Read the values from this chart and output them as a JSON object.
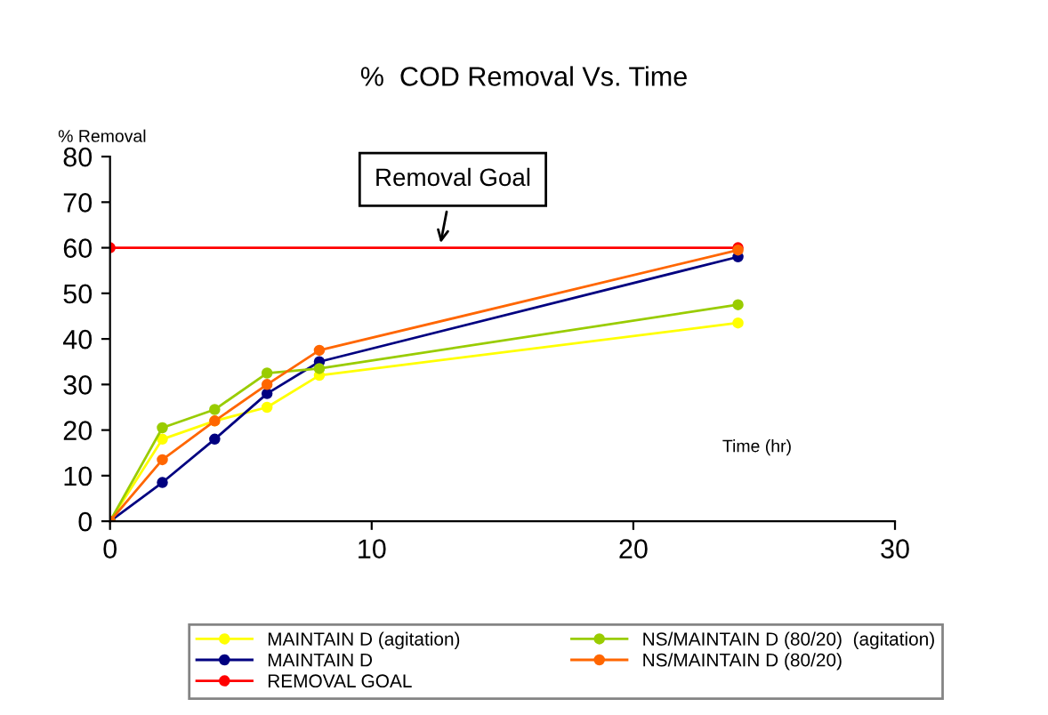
{
  "chart_data": {
    "type": "line",
    "title": "%  COD Removal Vs. Time",
    "xlabel": "Time (hr)",
    "ylabel": "% Removal",
    "x": [
      0,
      2,
      4,
      6,
      8,
      24
    ],
    "series": [
      {
        "name": "MAINTAIN D (agitation)",
        "color": "#ffff00",
        "values": [
          0,
          18,
          22,
          25,
          32,
          43.5
        ]
      },
      {
        "name": "MAINTAIN D",
        "color": "#000080",
        "values": [
          0,
          8.5,
          18,
          28,
          35,
          58
        ]
      },
      {
        "name": "REMOVAL GOAL",
        "color": "#ff0000",
        "x": [
          0,
          24
        ],
        "values": [
          60,
          60
        ]
      },
      {
        "name": "NS/MAINTAIN D (80/20)  (agitation)",
        "color": "#99cc00",
        "values": [
          0,
          20.5,
          24.5,
          32.5,
          33.5,
          47.5
        ]
      },
      {
        "name": "NS/MAINTAIN D (80/20)",
        "color": "#ff6600",
        "values": [
          0,
          13.5,
          22,
          30,
          37.5,
          59.5
        ]
      }
    ],
    "xlim": [
      0,
      30
    ],
    "xticks": [
      0,
      10,
      20,
      30
    ],
    "ylim": [
      0,
      80
    ],
    "yticks": [
      0,
      10,
      20,
      30,
      40,
      50,
      60,
      70,
      80
    ],
    "annotations": [
      {
        "text": "Removal Goal",
        "x": 12.6,
        "y": 60
      }
    ],
    "marker": "circle",
    "line_style": "solid",
    "grid": false,
    "legend": "bottom"
  }
}
